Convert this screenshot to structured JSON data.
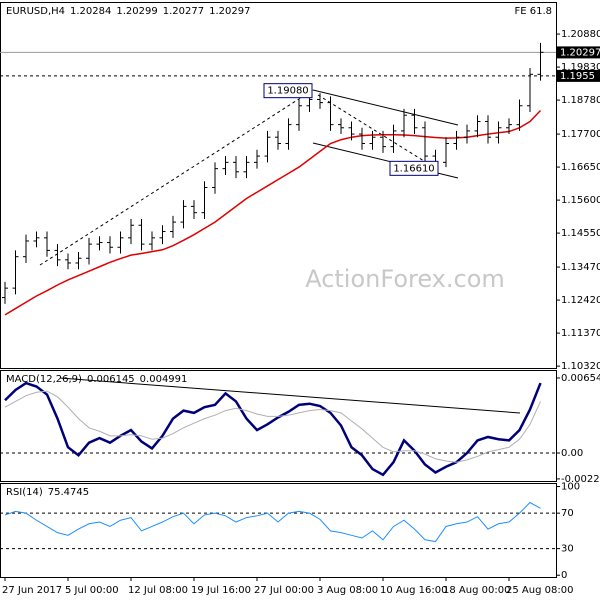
{
  "chart_data": [
    {
      "type": "ohlc",
      "title": "EURUSD,H4",
      "quote": [
        1.20284,
        1.20299,
        1.20277,
        1.20297
      ],
      "corner_text": "FE 61.8",
      "watermark": "ActionForex.com",
      "categories": [
        "27 Jun 2017",
        null,
        null,
        null,
        null,
        null,
        "5 Jul 00:00",
        null,
        null,
        null,
        null,
        null,
        "12 Jul 08:00",
        null,
        null,
        null,
        null,
        null,
        "19 Jul 16:00",
        null,
        null,
        null,
        null,
        null,
        "27 Jul 00:00",
        null,
        null,
        null,
        null,
        null,
        "3 Aug 08:00",
        null,
        null,
        null,
        null,
        null,
        "10 Aug 16:00",
        null,
        null,
        null,
        null,
        null,
        "18 Aug 00:00",
        null,
        null,
        null,
        null,
        null,
        "25 Aug 08:00",
        null,
        null,
        null
      ],
      "color": "#000000",
      "open": [
        1.125,
        1.128,
        1.138,
        1.143,
        1.144,
        1.14,
        1.137,
        1.136,
        1.1375,
        1.142,
        1.1425,
        1.141,
        1.144,
        1.148,
        1.142,
        1.144,
        1.146,
        1.149,
        1.154,
        1.152,
        1.16,
        1.166,
        1.168,
        1.165,
        1.168,
        1.17,
        1.176,
        1.174,
        1.18,
        1.186,
        1.188,
        1.187,
        1.18,
        1.179,
        1.177,
        1.174,
        1.176,
        1.173,
        1.178,
        1.183,
        1.179,
        1.17,
        1.168,
        1.174,
        1.176,
        1.178,
        1.181,
        1.176,
        1.179,
        1.18,
        1.186,
        1.196
      ],
      "high": [
        1.13,
        1.14,
        1.145,
        1.146,
        1.146,
        1.142,
        1.139,
        1.1395,
        1.144,
        1.1445,
        1.1445,
        1.146,
        1.15,
        1.15,
        1.146,
        1.148,
        1.151,
        1.156,
        1.156,
        1.162,
        1.168,
        1.17,
        1.17,
        1.17,
        1.172,
        1.178,
        1.178,
        1.182,
        1.188,
        1.1908,
        1.19,
        1.189,
        1.182,
        1.181,
        1.179,
        1.178,
        1.178,
        1.18,
        1.185,
        1.185,
        1.181,
        1.172,
        1.176,
        1.178,
        1.18,
        1.183,
        1.183,
        1.181,
        1.182,
        1.188,
        1.198,
        1.206
      ],
      "low": [
        1.123,
        1.126,
        1.136,
        1.141,
        1.138,
        1.135,
        1.134,
        1.134,
        1.1355,
        1.14,
        1.139,
        1.139,
        1.142,
        1.14,
        1.14,
        1.142,
        1.144,
        1.147,
        1.15,
        1.15,
        1.158,
        1.164,
        1.163,
        1.163,
        1.166,
        1.168,
        1.172,
        1.172,
        1.178,
        1.184,
        1.185,
        1.178,
        1.177,
        1.175,
        1.172,
        1.172,
        1.171,
        1.171,
        1.176,
        1.177,
        1.168,
        1.1661,
        1.1665,
        1.172,
        1.174,
        1.176,
        1.174,
        1.174,
        1.177,
        1.178,
        1.184,
        1.194
      ],
      "close": [
        1.128,
        1.138,
        1.143,
        1.144,
        1.14,
        1.137,
        1.136,
        1.1375,
        1.142,
        1.1425,
        1.141,
        1.144,
        1.148,
        1.142,
        1.144,
        1.146,
        1.149,
        1.154,
        1.152,
        1.16,
        1.166,
        1.168,
        1.165,
        1.168,
        1.17,
        1.176,
        1.174,
        1.18,
        1.186,
        1.188,
        1.187,
        1.18,
        1.179,
        1.177,
        1.174,
        1.176,
        1.173,
        1.178,
        1.183,
        1.179,
        1.17,
        1.168,
        1.174,
        1.176,
        1.178,
        1.181,
        1.176,
        1.179,
        1.18,
        1.186,
        1.196,
        1.203
      ],
      "overlays": [
        {
          "color": "#e00000",
          "values": [
            1.1195,
            1.1215,
            1.1235,
            1.1255,
            1.1272,
            1.129,
            1.1306,
            1.132,
            1.1334,
            1.1348,
            1.1362,
            1.1374,
            1.1385,
            1.139,
            1.1396,
            1.1402,
            1.1415,
            1.1432,
            1.145,
            1.147,
            1.149,
            1.1515,
            1.154,
            1.1565,
            1.1585,
            1.1605,
            1.1625,
            1.1645,
            1.1665,
            1.169,
            1.1715,
            1.174,
            1.1752,
            1.176,
            1.1765,
            1.1767,
            1.1768,
            1.1768,
            1.1767,
            1.1765,
            1.1762,
            1.1759,
            1.1757,
            1.1758,
            1.176,
            1.1765,
            1.177,
            1.1774,
            1.1778,
            1.179,
            1.181,
            1.1845
          ]
        }
      ],
      "ylim": [
        1.1026,
        1.219
      ],
      "yticks": [
        {
          "value": 1.2088,
          "label": "1.20880"
        },
        {
          "value": 1.1983,
          "label": "1.19830"
        },
        {
          "value": 1.1878,
          "label": "1.18780"
        },
        {
          "value": 1.177,
          "label": "1.17700"
        },
        {
          "value": 1.1665,
          "label": "1.16650"
        },
        {
          "value": 1.156,
          "label": "1.15600"
        },
        {
          "value": 1.1455,
          "label": "1.14550"
        },
        {
          "value": 1.1347,
          "label": "1.13470"
        },
        {
          "value": 1.1242,
          "label": "1.12420"
        },
        {
          "value": 1.1137,
          "label": "1.11370"
        },
        {
          "value": 1.1032,
          "label": "1.10320"
        }
      ],
      "levels": [
        {
          "value": 1.20297,
          "style": "solid"
        },
        {
          "value": 1.1955,
          "style": "dashed"
        }
      ],
      "annotations": [
        {
          "value": 1.1908,
          "label": "1.19080"
        },
        {
          "value": 1.1661,
          "label": "1.16610"
        }
      ],
      "grid": false
    },
    {
      "type": "line",
      "title": "MACD(12,26,9)",
      "quote": [
        0.006145,
        0.004991
      ],
      "series": [
        {
          "color": "#00007a",
          "width": 2.5,
          "values": [
            0.0046,
            0.0055,
            0.0061,
            0.0058,
            0.0051,
            0.003,
            0.0005,
            -0.0002,
            0.0009,
            0.0013,
            0.0009,
            0.0015,
            0.002,
            0.001,
            0.0004,
            0.0015,
            0.003,
            0.0037,
            0.0035,
            0.004,
            0.0042,
            0.0052,
            0.0045,
            0.003,
            0.002,
            0.0025,
            0.0031,
            0.0036,
            0.0042,
            0.0043,
            0.0041,
            0.0035,
            0.0024,
            0.0005,
            -0.0002,
            -0.0014,
            -0.0019,
            -0.0008,
            0.0011,
            0.0002,
            -0.001,
            -0.0017,
            -0.0012,
            -0.0008,
            0.0,
            0.0011,
            0.0014,
            0.0012,
            0.0011,
            0.002,
            0.0038,
            0.0061
          ]
        },
        {
          "color": "#b0b0b0",
          "width": 1,
          "values": [
            0.004,
            0.0045,
            0.005,
            0.0053,
            0.0054,
            0.0049,
            0.004,
            0.003,
            0.0022,
            0.0019,
            0.0015,
            0.0015,
            0.0016,
            0.0015,
            0.0012,
            0.0013,
            0.0017,
            0.0022,
            0.0026,
            0.003,
            0.0033,
            0.0037,
            0.0039,
            0.0037,
            0.0034,
            0.0032,
            0.0032,
            0.0033,
            0.0035,
            0.0037,
            0.0038,
            0.0037,
            0.0035,
            0.0028,
            0.0021,
            0.0013,
            0.0005,
            0.0001,
            0.0002,
            0.0002,
            -0.0001,
            -0.0005,
            -0.0007,
            -0.0008,
            -0.0006,
            -0.0003,
            0.0001,
            0.0003,
            0.0005,
            0.0012,
            0.0025,
            0.0045
          ]
        }
      ],
      "ylim": [
        -0.00244,
        0.00724
      ],
      "yticks": [
        0.006545,
        {
          "value": 0,
          "label": "0.00"
        },
        -0.002256
      ],
      "levels": [
        {
          "value": 0,
          "style": "dashed"
        }
      ],
      "grid": false
    },
    {
      "type": "line",
      "title": "RSI(14)",
      "quote": [
        75.4745
      ],
      "series": [
        {
          "color": "#1e90ff",
          "width": 1,
          "values": [
            68,
            72,
            70,
            62,
            55,
            48,
            45,
            52,
            58,
            60,
            55,
            62,
            65,
            50,
            55,
            60,
            66,
            70,
            58,
            68,
            70,
            67,
            60,
            65,
            67,
            70,
            60,
            70,
            72,
            70,
            63,
            50,
            48,
            45,
            42,
            50,
            40,
            55,
            62,
            52,
            40,
            38,
            55,
            58,
            60,
            66,
            52,
            58,
            60,
            70,
            82,
            75.4745
          ]
        }
      ],
      "ylim": [
        -2,
        104
      ],
      "yticks": [
        100,
        70,
        30,
        0
      ],
      "levels": [
        {
          "value": 70,
          "style": "dashed"
        },
        {
          "value": 30,
          "style": "dashed"
        }
      ],
      "grid": false
    }
  ]
}
